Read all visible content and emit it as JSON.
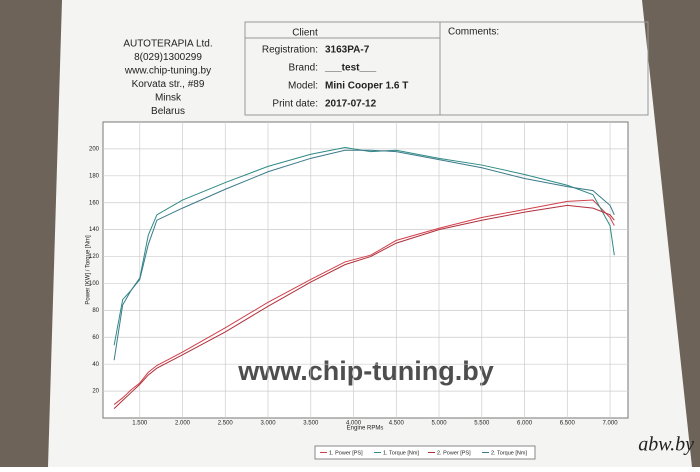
{
  "header": {
    "company": [
      "AUTOTERAPIA Ltd.",
      "8(029)1300299",
      "www.chip-tuning.by",
      "Korvata str., #89",
      "Minsk",
      "Belarus"
    ],
    "client_title": "Client",
    "fields": [
      {
        "label": "Registration:",
        "value": "3163PA-7"
      },
      {
        "label": "Brand:",
        "value": "___test___"
      },
      {
        "label": "Model:",
        "value": "Mini Cooper 1.6 T"
      },
      {
        "label": "Print date:",
        "value": "2017-07-12"
      }
    ],
    "comments_title": "Comments:"
  },
  "watermark": "www.chip-tuning.by",
  "corner_mark": "abw.by",
  "chart_data": {
    "type": "line",
    "x_label": "Engine RPMs",
    "y_label": "Power [KW] / Torque [Nm]",
    "x": [
      1200,
      1300,
      1400,
      1500,
      1600,
      1700,
      2000,
      2500,
      3000,
      3500,
      3900,
      4200,
      4500,
      5000,
      5500,
      6000,
      6500,
      6800,
      7000,
      7050
    ],
    "series": [
      {
        "name": "1. Power [PS]",
        "color": "#d0404a",
        "values": [
          10,
          15,
          21,
          26,
          34,
          39,
          49,
          67,
          86,
          103,
          116,
          121,
          132,
          141,
          149,
          155,
          161,
          162,
          149,
          143
        ]
      },
      {
        "name": "1. Torque [Nm]",
        "color": "#2e8a84",
        "values": [
          54,
          88,
          95,
          104,
          136,
          151,
          162,
          175,
          187,
          196,
          201,
          198,
          199,
          193,
          188,
          181,
          173,
          166,
          143,
          121
        ]
      },
      {
        "name": "2. Power [PS]",
        "color": "#b0303c",
        "values": [
          7,
          13,
          19,
          25,
          32,
          37,
          47,
          64,
          83,
          101,
          114,
          120,
          130,
          140,
          147,
          153,
          158,
          156,
          151,
          147
        ]
      },
      {
        "name": "2. Torque [Nm]",
        "color": "#3a7a8a",
        "values": [
          43,
          84,
          95,
          103,
          129,
          147,
          156,
          170,
          183,
          193,
          199,
          199,
          198,
          192,
          186,
          178,
          172,
          169,
          158,
          151
        ]
      }
    ],
    "xlim": [
      1070,
      7210
    ],
    "ylim": [
      0,
      220
    ],
    "xticks": [
      {
        "value": 1500,
        "label": "1.500"
      },
      {
        "value": 2000,
        "label": "2.000"
      },
      {
        "value": 2500,
        "label": "2.500"
      },
      {
        "value": 3000,
        "label": "3.000"
      },
      {
        "value": 3500,
        "label": "3.500"
      },
      {
        "value": 4000,
        "label": "4.000"
      },
      {
        "value": 4500,
        "label": "4.500"
      },
      {
        "value": 5000,
        "label": "5.000"
      },
      {
        "value": 5500,
        "label": "5.500"
      },
      {
        "value": 6000,
        "label": "6.000"
      },
      {
        "value": 6500,
        "label": "6.500"
      },
      {
        "value": 7000,
        "label": "7.000"
      }
    ],
    "yticks": [
      20,
      40,
      60,
      80,
      100,
      120,
      140,
      160,
      180,
      200
    ],
    "grid": true
  }
}
